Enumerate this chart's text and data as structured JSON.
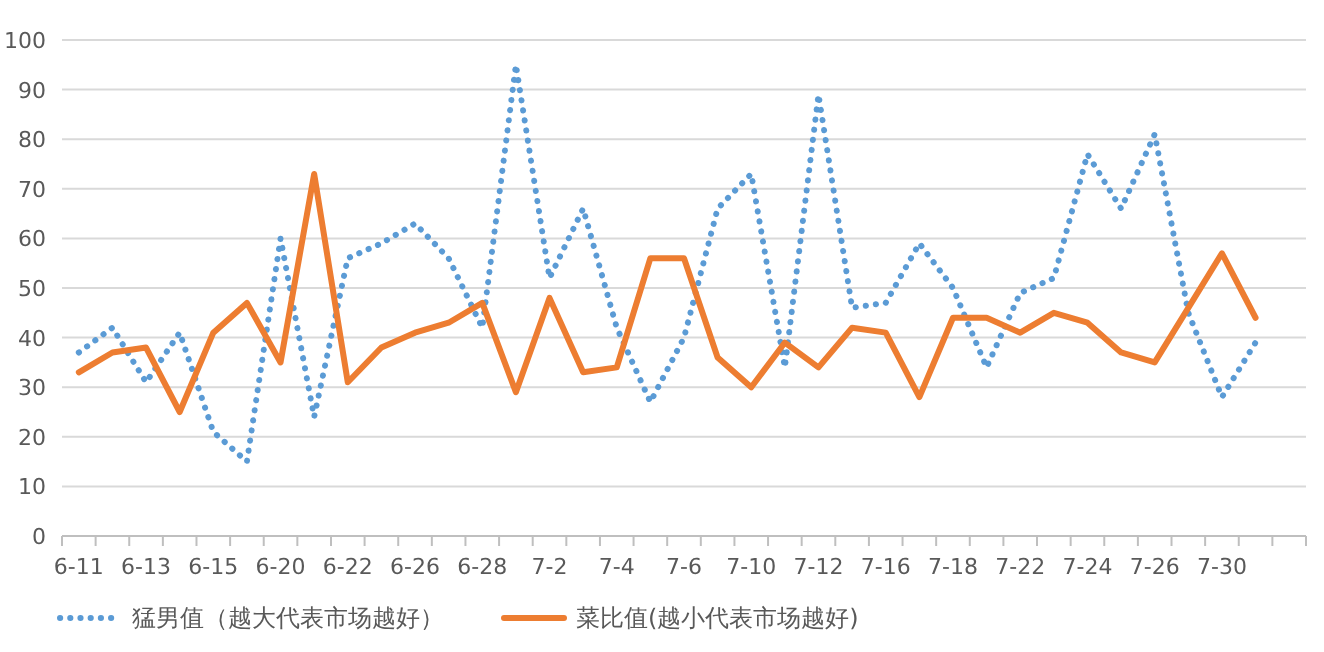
{
  "chart_data": {
    "type": "line",
    "categories": [
      "6-11",
      null,
      "6-13",
      null,
      "6-15",
      null,
      "6-20",
      null,
      "6-22",
      null,
      "6-26",
      null,
      "6-28",
      null,
      "7-2",
      null,
      "7-4",
      null,
      "7-6",
      null,
      "7-10",
      null,
      "7-12",
      null,
      "7-16",
      null,
      "7-18",
      null,
      "7-22",
      null,
      "7-24",
      null,
      "7-26",
      null,
      "7-30",
      null,
      null
    ],
    "series": [
      {
        "name": "猛男值（越大代表市场越好）",
        "color": "#5b9bd5",
        "line_style": "dotted",
        "values": [
          37,
          42,
          31,
          41,
          21,
          15,
          60,
          24,
          56,
          59,
          63,
          56,
          42,
          95,
          52,
          66,
          42,
          27,
          40,
          66,
          73,
          34,
          89,
          46,
          47,
          59,
          50,
          34,
          49,
          52,
          77,
          66,
          81,
          45,
          28,
          39,
          null
        ]
      },
      {
        "name": "菜比值(越小代表市场越好)",
        "color": "#ed7d31",
        "line_style": "solid",
        "values": [
          33,
          37,
          38,
          25,
          41,
          47,
          35,
          73,
          31,
          38,
          41,
          43,
          47,
          29,
          48,
          33,
          34,
          56,
          56,
          36,
          30,
          39,
          34,
          42,
          41,
          28,
          44,
          44,
          41,
          45,
          43,
          37,
          35,
          46,
          57,
          44,
          null
        ]
      }
    ],
    "ylim": [
      0,
      100
    ],
    "yticks": [
      0,
      10,
      20,
      30,
      40,
      50,
      60,
      70,
      80,
      90,
      100
    ],
    "grid": "y",
    "legend": "bottom"
  }
}
